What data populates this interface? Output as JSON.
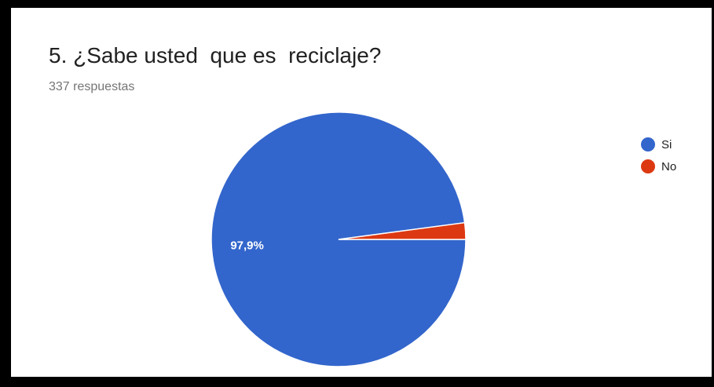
{
  "card": {
    "title": "5. ¿Sabe usted  que es  reciclaje?",
    "subtitle": "337 respuestas"
  },
  "chart_data": {
    "type": "pie",
    "title": "5. ¿Sabe usted  que es  reciclaje?",
    "subtitle": "337 respuestas",
    "categories": [
      "Si",
      "No"
    ],
    "values": [
      97.9,
      2.1
    ],
    "value_labels": [
      "97,9%",
      ""
    ],
    "colors": [
      "#3366cc",
      "#dc3912"
    ],
    "legend_position": "right"
  }
}
